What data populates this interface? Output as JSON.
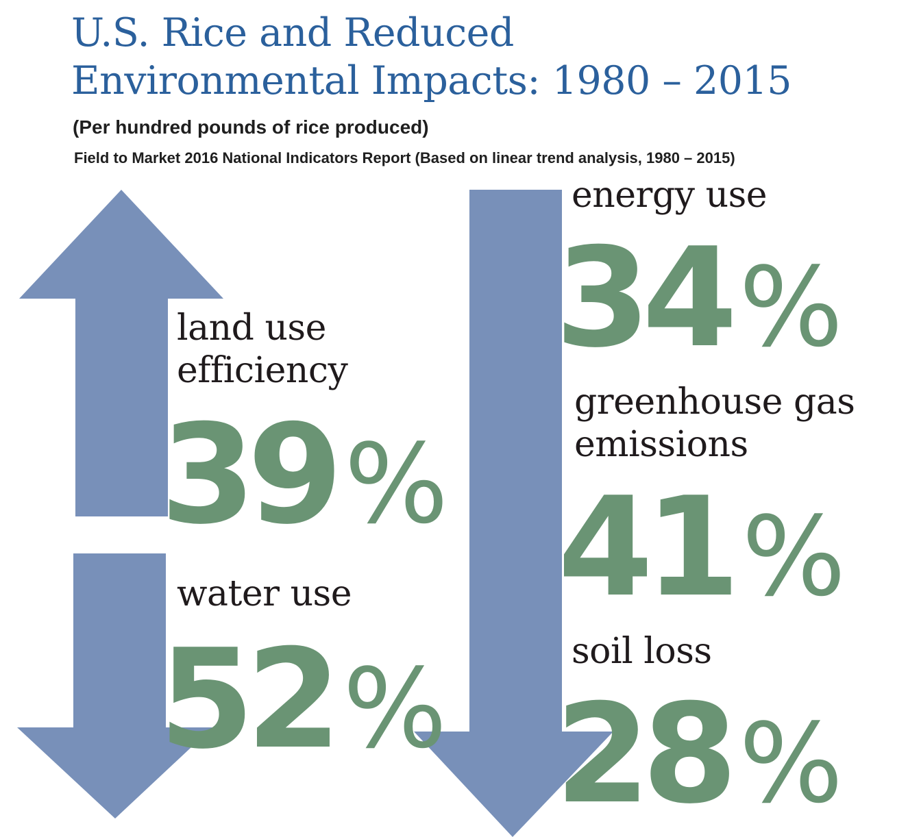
{
  "title_line1": "U.S. Rice and Reduced",
  "title_line2": "Environmental Impacts: 1980 – 2015",
  "subtitle": "(Per hundred pounds of rice produced)",
  "source": "Field to Market 2016 National Indicators Report (Based on linear trend analysis, 1980 – 2015)",
  "colors": {
    "title": "#2B609C",
    "arrow": "#7890B9",
    "percent": "#6A9474",
    "label": "#1F1A1C"
  },
  "metrics": [
    {
      "label_line1": "land use",
      "label_line2": "efficiency",
      "value": "39",
      "sign": "%",
      "direction": "up"
    },
    {
      "label_line1": "water use",
      "value": "52",
      "sign": "%",
      "direction": "down"
    },
    {
      "label_line1": "energy use",
      "value": "34",
      "sign": "%",
      "direction": "down"
    },
    {
      "label_line1": "greenhouse gas",
      "label_line2": "emissions",
      "value": "41",
      "sign": "%",
      "direction": "down"
    },
    {
      "label_line1": "soil loss",
      "value": "28",
      "sign": "%",
      "direction": "down"
    }
  ]
}
